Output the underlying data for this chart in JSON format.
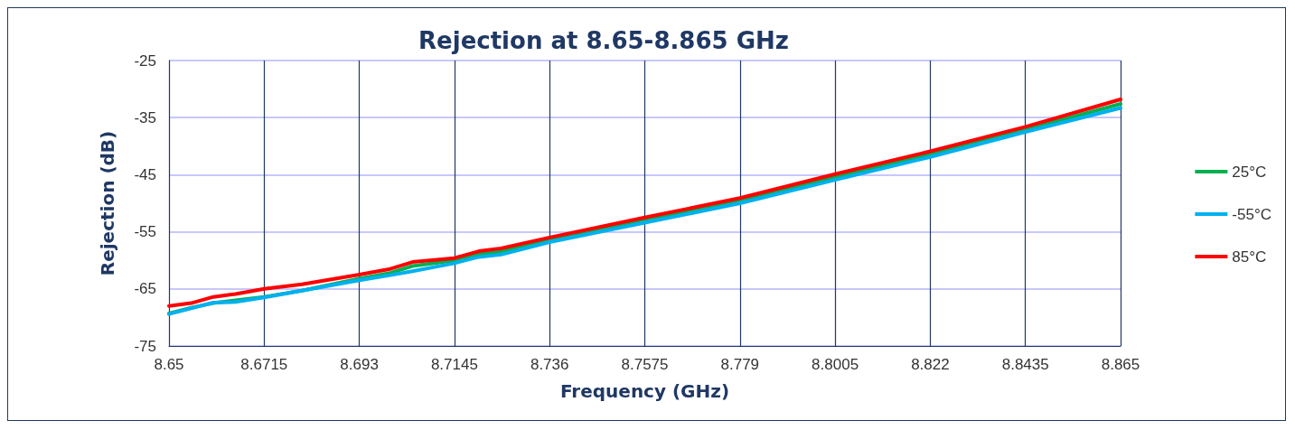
{
  "chart_data": {
    "type": "line",
    "title": "Rejection at 8.65-8.865 GHz",
    "xlabel": "Frequency (GHz)",
    "ylabel": "Rejection (dB)",
    "x": [
      8.65,
      8.655,
      8.66,
      8.665,
      8.6715,
      8.68,
      8.693,
      8.7,
      8.705,
      8.7145,
      8.72,
      8.725,
      8.736,
      8.7575,
      8.779,
      8.8005,
      8.822,
      8.8435,
      8.865
    ],
    "series": [
      {
        "name": "25°C",
        "color": "#00b050",
        "values": [
          -69.3,
          -68.3,
          -67.5,
          -67.0,
          -66.4,
          -65.3,
          -63.2,
          -62.2,
          -61.0,
          -60.0,
          -58.9,
          -58.5,
          -56.3,
          -53.0,
          -49.6,
          -45.4,
          -41.4,
          -37.1,
          -32.6
        ]
      },
      {
        "name": "-55°C",
        "color": "#00b0f0",
        "values": [
          -69.4,
          -68.4,
          -67.4,
          -67.3,
          -66.5,
          -65.3,
          -63.5,
          -62.6,
          -61.9,
          -60.5,
          -59.4,
          -59.0,
          -56.8,
          -53.4,
          -50.0,
          -45.9,
          -41.9,
          -37.5,
          -33.3
        ]
      },
      {
        "name": "85°C",
        "color": "#ff0000",
        "values": [
          -68.0,
          -67.5,
          -66.4,
          -65.9,
          -65.0,
          -64.2,
          -62.5,
          -61.5,
          -60.3,
          -59.6,
          -58.4,
          -57.9,
          -56.0,
          -52.5,
          -49.1,
          -44.9,
          -40.9,
          -36.6,
          -31.8
        ]
      }
    ],
    "xlim": [
      8.65,
      8.865
    ],
    "xticks": [
      8.65,
      8.6715,
      8.693,
      8.7145,
      8.736,
      8.7575,
      8.779,
      8.8005,
      8.822,
      8.8435,
      8.865
    ],
    "ylim": [
      -75,
      -25
    ],
    "yticks": [
      -25,
      -35,
      -45,
      -55,
      -65,
      -75
    ],
    "grid": true,
    "legend": "right",
    "marker": "none",
    "line_style": "solid"
  }
}
